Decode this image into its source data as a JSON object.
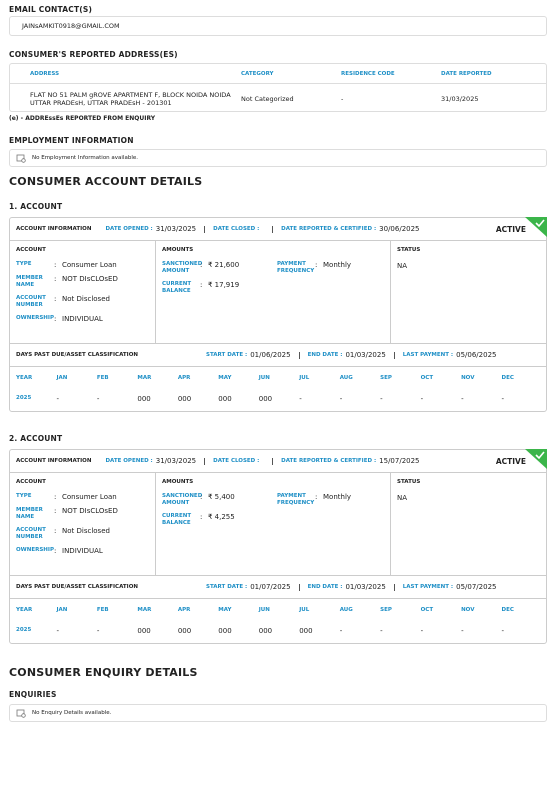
{
  "email": {
    "title": "EMAIL CONTACT(S)",
    "emails": [
      "JAINsAMKIT0918@GMAIL.COM"
    ]
  },
  "address": {
    "title": "CONSUMER'S REPORTED ADDRESS(ES)",
    "columns": [
      "ADDRESS",
      "CATEGORY",
      "RESIDENCE CODE",
      "DATE REPORTED"
    ],
    "rows": [
      [
        "FLAT NO 51 PALM gROVE APARTMENT F, BLOCK NOIDA NOIDA UTTAR PRADEsH, UTTAR PRADEsH - 201301",
        "Not Categorized",
        "-",
        "31/03/2025"
      ]
    ],
    "note": "(e) - ADDREssEs REPORTED FROM ENQUIRY"
  },
  "employment": {
    "title": "EMPLOYMENT INFORMATION",
    "message": "No Employment Information available."
  },
  "account_details": {
    "title": "CONSUMER ACCOUNT DETAILS",
    "separator": ":",
    "accounts": [
      {
        "heading": "1. ACCOUNT",
        "info": {
          "title": "ACCOUNT INFORMATION",
          "date_opened_label": "DATE OPENED :",
          "date_opened": "31/03/2025",
          "date_closed_label": "DATE CLOSED :",
          "date_reported_label": "DATE REPORTED & CERTIFIED :",
          "date_reported": "30/06/2025",
          "status": "ACTIVE"
        },
        "account": {
          "title": "ACCOUNT",
          "fields": [
            {
              "label": "TYPE",
              "value": "Consumer Loan"
            },
            {
              "label": "MEMBER NAME",
              "value": "NOT DIsCLOsED"
            },
            {
              "label": "ACCOUNT NUMBER",
              "value": "Not Disclosed"
            },
            {
              "label": "OWNERSHIP",
              "value": "INDIVIDUAL"
            }
          ]
        },
        "amounts": {
          "title": "AMOUNTS",
          "fields": [
            {
              "label": "SANCTIONED AMOUNT",
              "value": "₹ 21,600"
            },
            {
              "label": "PAYMENT FREQUENCY",
              "value": "Monthly"
            },
            {
              "label": "CURRENT BALANCE",
              "value": "₹ 17,919"
            }
          ]
        },
        "status": {
          "title": "STATUS",
          "value": "NA"
        },
        "dpd": {
          "title": "DAYS PAST DUE/ASSET CLASSIFICATION",
          "start_label": "START DATE :",
          "start": "01/06/2025",
          "end_label": "END DATE :",
          "end": "01/03/2025",
          "last_payment_label": "LAST PAYMENT :",
          "last_payment": "05/06/2025"
        },
        "history": {
          "columns": [
            "YEAR",
            "JAN",
            "FEB",
            "MAR",
            "APR",
            "MAY",
            "JUN",
            "JUL",
            "AUG",
            "SEP",
            "OCT",
            "NOV",
            "DEC"
          ],
          "rows": [
            [
              "2025",
              "-",
              "-",
              "000",
              "000",
              "000",
              "000",
              "-",
              "-",
              "-",
              "-",
              "-",
              "-"
            ]
          ]
        }
      },
      {
        "heading": "2. ACCOUNT",
        "info": {
          "title": "ACCOUNT INFORMATION",
          "date_opened_label": "DATE OPENED :",
          "date_opened": "31/03/2025",
          "date_closed_label": "DATE CLOSED :",
          "date_reported_label": "DATE REPORTED & CERTIFIED :",
          "date_reported": "15/07/2025",
          "status": "ACTIVE"
        },
        "account": {
          "title": "ACCOUNT",
          "fields": [
            {
              "label": "TYPE",
              "value": "Consumer Loan"
            },
            {
              "label": "MEMBER NAME",
              "value": "NOT DIsCLOsED"
            },
            {
              "label": "ACCOUNT NUMBER",
              "value": "Not Disclosed"
            },
            {
              "label": "OWNERSHIP",
              "value": "INDIVIDUAL"
            }
          ]
        },
        "amounts": {
          "title": "AMOUNTS",
          "fields": [
            {
              "label": "SANCTIONED AMOUNT",
              "value": "₹ 5,400"
            },
            {
              "label": "PAYMENT FREQUENCY",
              "value": "Monthly"
            },
            {
              "label": "CURRENT BALANCE",
              "value": "₹ 4,255"
            }
          ]
        },
        "status": {
          "title": "STATUS",
          "value": "NA"
        },
        "dpd": {
          "title": "DAYS PAST DUE/ASSET CLASSIFICATION",
          "start_label": "START DATE :",
          "start": "01/07/2025",
          "end_label": "END DATE :",
          "end": "01/03/2025",
          "last_payment_label": "LAST PAYMENT :",
          "last_payment": "05/07/2025"
        },
        "history": {
          "columns": [
            "YEAR",
            "JAN",
            "FEB",
            "MAR",
            "APR",
            "MAY",
            "JUN",
            "JUL",
            "AUG",
            "SEP",
            "OCT",
            "NOV",
            "DEC"
          ],
          "rows": [
            [
              "2025",
              "-",
              "-",
              "000",
              "000",
              "000",
              "000",
              "000",
              "-",
              "-",
              "-",
              "-",
              "-"
            ]
          ]
        }
      }
    ]
  },
  "enquiry": {
    "title": "CONSUMER ENQUIRY DETAILS",
    "subtitle": "ENQUIRIES",
    "message": "No Enquiry Details available."
  }
}
